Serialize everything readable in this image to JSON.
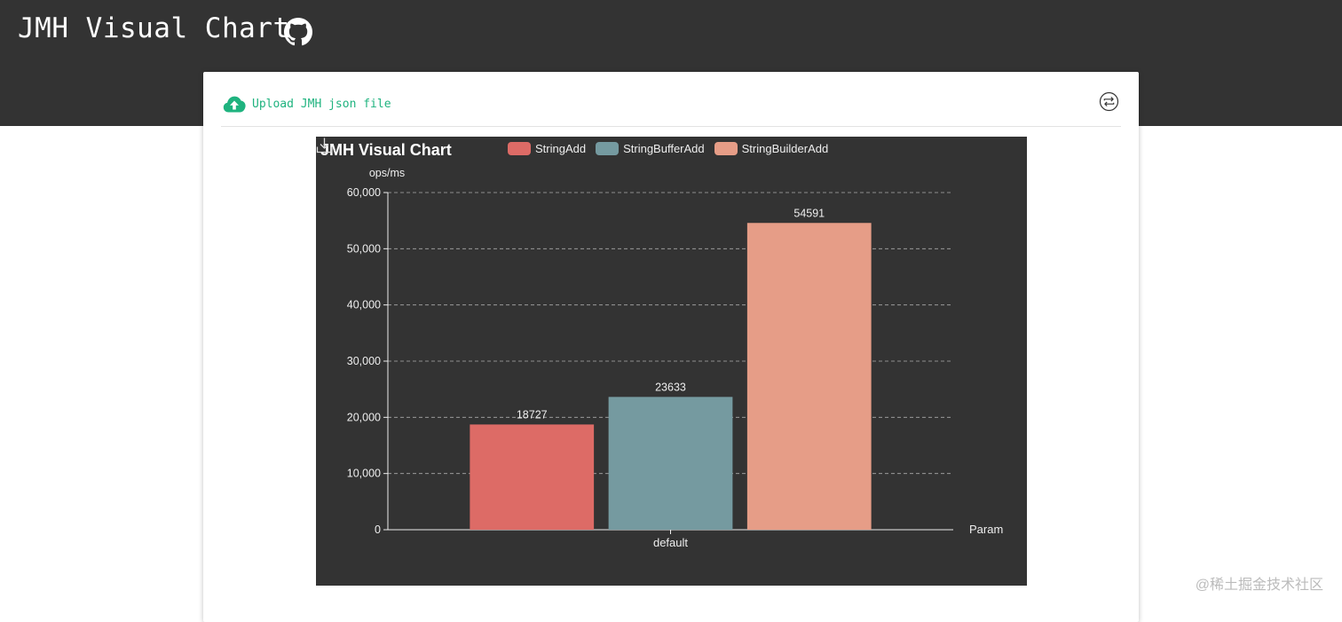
{
  "header": {
    "title": "JMH Visual Chart",
    "github_icon": "github-icon"
  },
  "toolbar": {
    "upload_label": "Upload JMH json file",
    "upload_icon": "cloud-upload-icon",
    "switch_icon": "swap-icon"
  },
  "watermark": "@稀土掘金技术社区",
  "colors": {
    "header_bg": "#333333",
    "accent": "#1fb37f",
    "chart_bg": "#333333",
    "series": [
      "#dd6b66",
      "#759aa0",
      "#e69d87"
    ]
  },
  "chart_data": {
    "type": "bar",
    "title": "JMH Visual Chart",
    "categories": [
      "default"
    ],
    "series": [
      {
        "name": "StringAdd",
        "values": [
          18727
        ]
      },
      {
        "name": "StringBufferAdd",
        "values": [
          23633
        ]
      },
      {
        "name": "StringBuilderAdd",
        "values": [
          54591
        ]
      }
    ],
    "xlabel": "Param",
    "ylabel": "ops/ms",
    "ylim": [
      0,
      60000
    ],
    "yticks": [
      0,
      10000,
      20000,
      30000,
      40000,
      50000,
      60000
    ],
    "ytick_labels": [
      "0",
      "10,000",
      "20,000",
      "30,000",
      "40,000",
      "50,000",
      "60,000"
    ],
    "grid": true,
    "legend_position": "top",
    "download_icon": "download-icon"
  }
}
